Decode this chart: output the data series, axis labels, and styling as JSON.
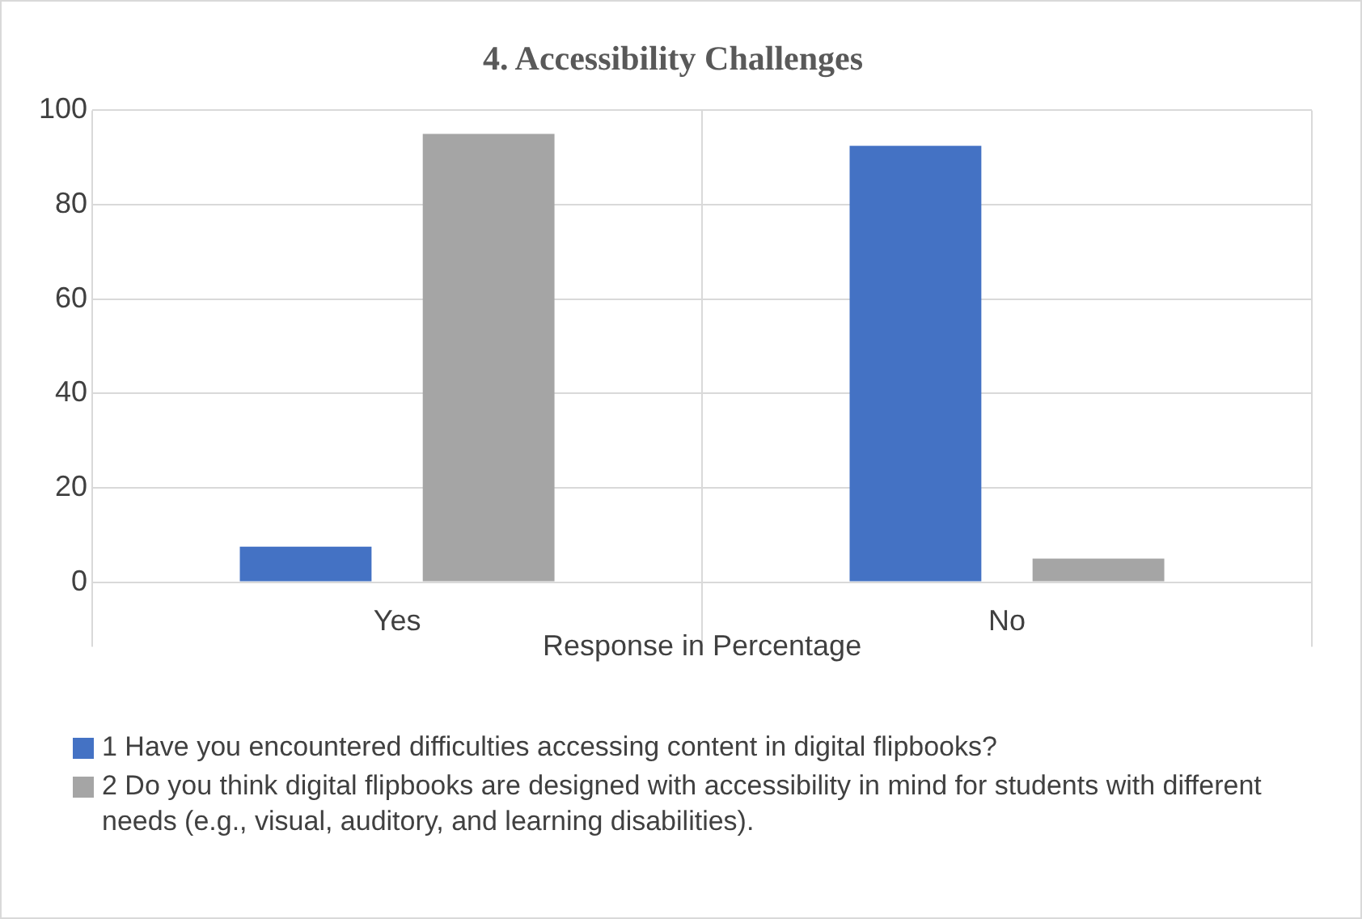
{
  "chart_data": {
    "type": "bar",
    "title": "4. Accessibility Challenges",
    "xlabel": "Response in Percentage",
    "categories": [
      "Yes",
      "No"
    ],
    "series": [
      {
        "name": "1 Have you encountered difficulties accessing content in digital flipbooks?",
        "color": "#4472c4",
        "values": [
          7.5,
          92.5
        ]
      },
      {
        "name": "2 Do you think digital flipbooks are designed with accessibility in mind for students with different needs (e.g., visual, auditory, and learning disabilities).",
        "color": "#a5a5a5",
        "values": [
          95,
          5
        ]
      }
    ],
    "ylim": [
      0,
      100
    ],
    "yticks": [
      0,
      20,
      40,
      60,
      80,
      100
    ],
    "grid": true,
    "legend": "bottom"
  }
}
